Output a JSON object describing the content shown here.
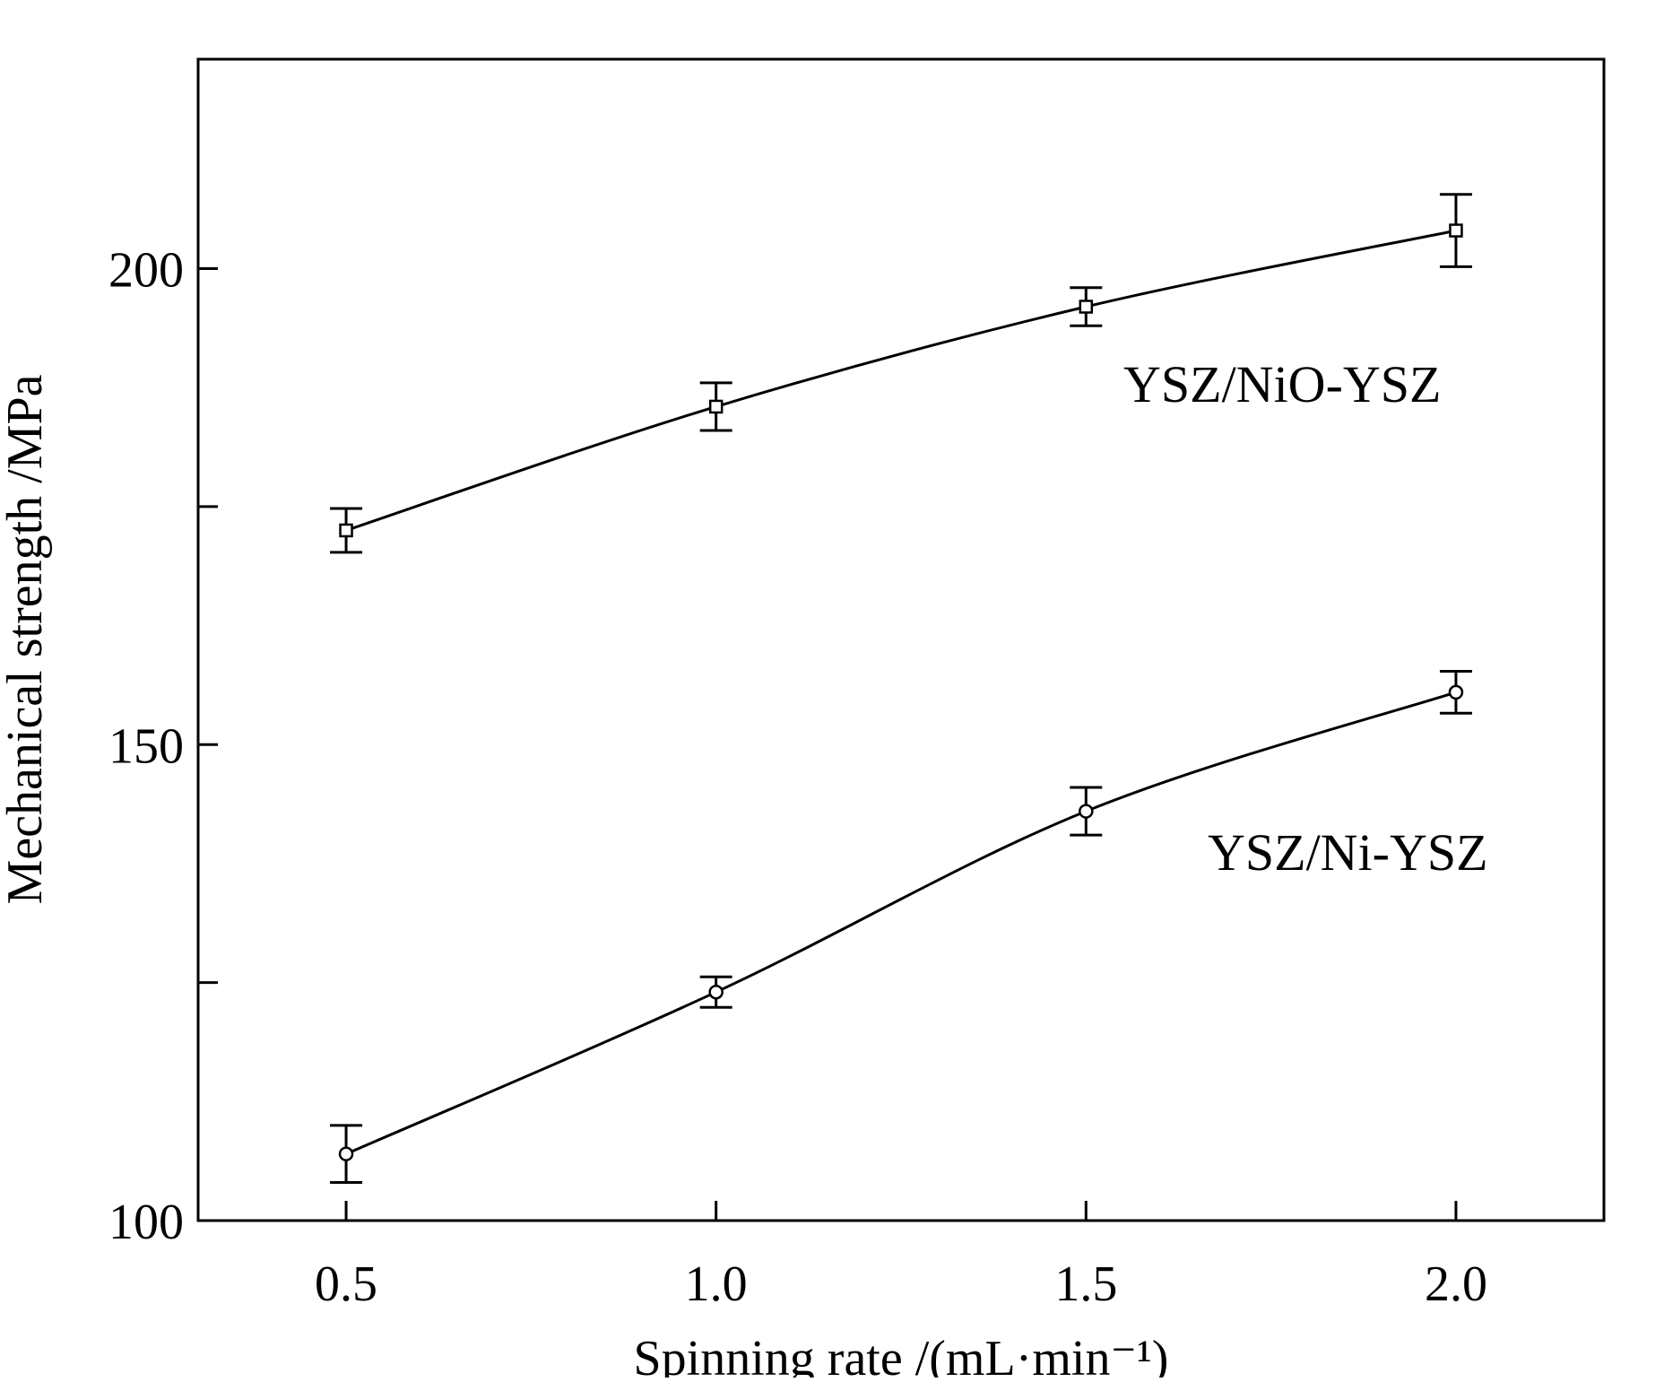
{
  "chart_data": {
    "type": "line",
    "xlabel": "Spinning rate /(mL·min⁻¹)",
    "ylabel": "Mechanical strength /MPa",
    "xlim": [
      0.3,
      2.2
    ],
    "ylim": [
      100,
      222
    ],
    "x_ticks": [
      0.5,
      1.0,
      1.5,
      2.0
    ],
    "x_tick_labels": [
      "0.5",
      "1.0",
      "1.5",
      "2.0"
    ],
    "y_ticks": [
      100,
      125,
      150,
      175,
      200
    ],
    "y_tick_labels": [
      "100",
      "",
      "150",
      "",
      "200"
    ],
    "grid": false,
    "series": [
      {
        "name": "YSZ/NiO-YSZ",
        "marker": "square",
        "x": [
          0.5,
          1.0,
          1.5,
          2.0
        ],
        "y": [
          172.5,
          185.5,
          196,
          204
        ],
        "err": [
          2.3,
          2.5,
          2,
          3.8
        ]
      },
      {
        "name": "YSZ/Ni-YSZ",
        "marker": "circle",
        "x": [
          0.5,
          1.0,
          1.5,
          2.0
        ],
        "y": [
          107,
          124,
          143,
          155.5
        ],
        "err": [
          3,
          1.6,
          2.5,
          2.2
        ]
      }
    ]
  }
}
